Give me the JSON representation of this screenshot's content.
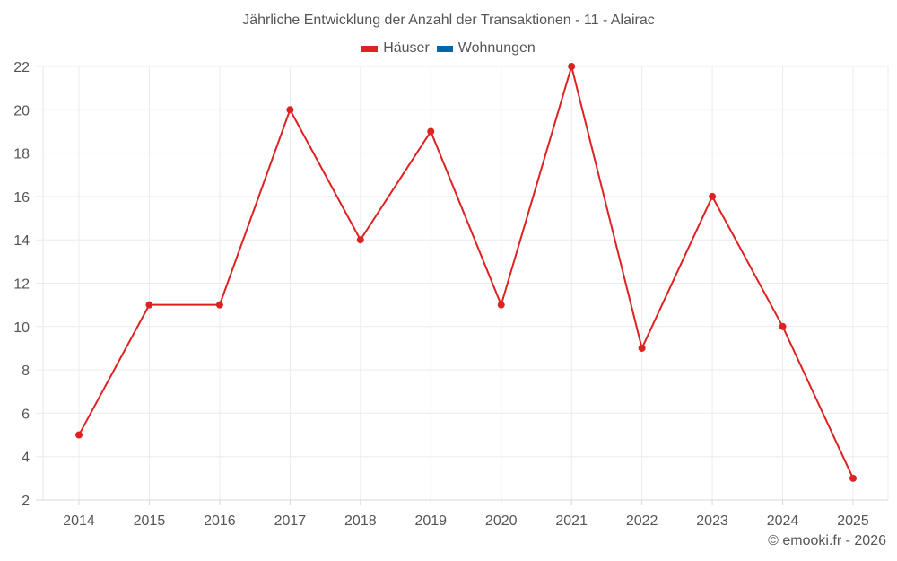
{
  "title": "Jährliche Entwicklung der Anzahl der Transaktionen - 11 - Alairac",
  "legend": [
    {
      "label": "Häuser",
      "color": "#dd2222",
      "icon": "legend-swatch"
    },
    {
      "label": "Wohnungen",
      "color": "#0066aa",
      "icon": "legend-swatch"
    }
  ],
  "credit": "© emooki.fr - 2026",
  "chart_data": {
    "type": "line",
    "title": "Jährliche Entwicklung der Anzahl der Transaktionen - 11 - Alairac",
    "xlabel": "",
    "ylabel": "",
    "categories": [
      "2014",
      "2015",
      "2016",
      "2017",
      "2018",
      "2019",
      "2020",
      "2021",
      "2022",
      "2023",
      "2024",
      "2025"
    ],
    "series": [
      {
        "name": "Häuser",
        "color": "#dd2222",
        "values": [
          5,
          11,
          11,
          20,
          14,
          19,
          11,
          22,
          9,
          16,
          10,
          3
        ]
      },
      {
        "name": "Wohnungen",
        "color": "#0066aa",
        "values": []
      }
    ],
    "ylim": [
      2,
      22
    ],
    "yticks": [
      2,
      4,
      6,
      8,
      10,
      12,
      14,
      16,
      18,
      20,
      22
    ],
    "grid": true,
    "legend_position": "top"
  }
}
